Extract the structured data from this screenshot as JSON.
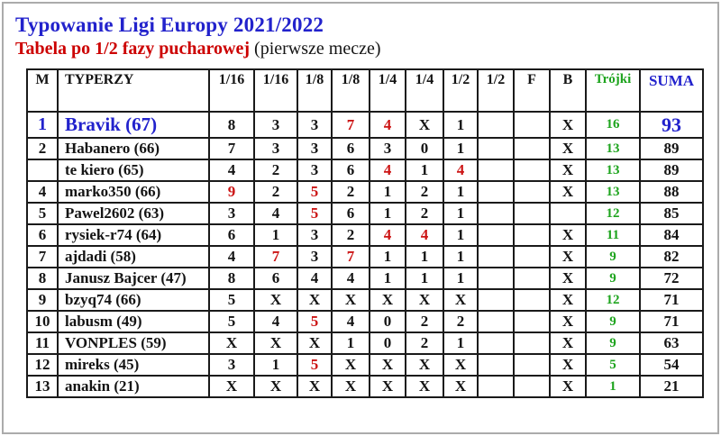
{
  "header": {
    "title": "Typowanie Ligi Europy 2021/2022",
    "subtitle": "Tabela po 1/2 fazy pucharowej",
    "subtitle_note": " (pierwsze mecze)"
  },
  "colors": {
    "title_blue": "#2222cc",
    "subtitle_red": "#cc0000",
    "value_red": "#cc1414",
    "green": "#1ea41e",
    "suma_blue": "#2222cc",
    "grid": "#1a1a1a",
    "frame_gray": "#ababab"
  },
  "table": {
    "columns": [
      "M",
      "TYPERZY",
      "1/16",
      "1/16",
      "1/8",
      "1/8",
      "1/4",
      "1/4",
      "1/2",
      "1/2",
      "F",
      "B",
      "Trójki",
      "SUMA"
    ],
    "rows": [
      {
        "rank": "1",
        "name": "Bravik (67)",
        "values": [
          "8",
          "3",
          "3",
          "7",
          "4",
          "X",
          "1",
          "",
          "",
          "X"
        ],
        "red": [
          3,
          4
        ],
        "trojki": "16",
        "suma": "93",
        "top": true
      },
      {
        "rank": "2",
        "name": "Habanero (66)",
        "values": [
          "7",
          "3",
          "3",
          "6",
          "3",
          "0",
          "1",
          "",
          "",
          "X"
        ],
        "red": [],
        "trojki": "13",
        "suma": "89"
      },
      {
        "rank": "",
        "name": "te kiero (65)",
        "values": [
          "4",
          "2",
          "3",
          "6",
          "4",
          "1",
          "4",
          "",
          "",
          "X"
        ],
        "red": [
          4,
          6
        ],
        "trojki": "13",
        "suma": "89"
      },
      {
        "rank": "4",
        "name": "marko350 (66)",
        "values": [
          "9",
          "2",
          "5",
          "2",
          "1",
          "2",
          "1",
          "",
          "",
          "X"
        ],
        "red": [
          0,
          2
        ],
        "trojki": "13",
        "suma": "88"
      },
      {
        "rank": "5",
        "name": "Pawel2602 (63)",
        "values": [
          "3",
          "4",
          "5",
          "6",
          "1",
          "2",
          "1",
          "",
          "",
          ""
        ],
        "red": [
          2
        ],
        "trojki": "12",
        "suma": "85"
      },
      {
        "rank": "6",
        "name": "rysiek-r74 (64)",
        "values": [
          "6",
          "1",
          "3",
          "2",
          "4",
          "4",
          "1",
          "",
          "",
          "X"
        ],
        "red": [
          4,
          5
        ],
        "trojki": "11",
        "suma": "84"
      },
      {
        "rank": "7",
        "name": "ajdadi (58)",
        "values": [
          "4",
          "7",
          "3",
          "7",
          "1",
          "1",
          "1",
          "",
          "",
          "X"
        ],
        "red": [
          1,
          3
        ],
        "trojki": "9",
        "suma": "82"
      },
      {
        "rank": "8",
        "name": "Janusz Bajcer (47)",
        "values": [
          "8",
          "6",
          "4",
          "4",
          "1",
          "1",
          "1",
          "",
          "",
          "X"
        ],
        "red": [],
        "trojki": "9",
        "suma": "72"
      },
      {
        "rank": "9",
        "name": "bzyq74 (66)",
        "values": [
          "5",
          "X",
          "X",
          "X",
          "X",
          "X",
          "X",
          "",
          "",
          "X"
        ],
        "red": [],
        "trojki": "12",
        "suma": "71"
      },
      {
        "rank": "10",
        "name": "labusm (49)",
        "values": [
          "5",
          "4",
          "5",
          "4",
          "0",
          "2",
          "2",
          "",
          "",
          "X"
        ],
        "red": [
          2
        ],
        "trojki": "9",
        "suma": "71"
      },
      {
        "rank": "11",
        "name": "VONPLES (59)",
        "values": [
          "X",
          "X",
          "X",
          "1",
          "0",
          "2",
          "1",
          "",
          "",
          "X"
        ],
        "red": [],
        "trojki": "9",
        "suma": "63"
      },
      {
        "rank": "12",
        "name": "mireks (45)",
        "values": [
          "3",
          "1",
          "5",
          "X",
          "X",
          "X",
          "X",
          "",
          "",
          "X"
        ],
        "red": [
          2
        ],
        "trojki": "5",
        "suma": "54"
      },
      {
        "rank": "13",
        "name": "anakin (21)",
        "values": [
          "X",
          "X",
          "X",
          "X",
          "X",
          "X",
          "X",
          "",
          "",
          "X"
        ],
        "red": [],
        "trojki": "1",
        "suma": "21"
      }
    ]
  }
}
